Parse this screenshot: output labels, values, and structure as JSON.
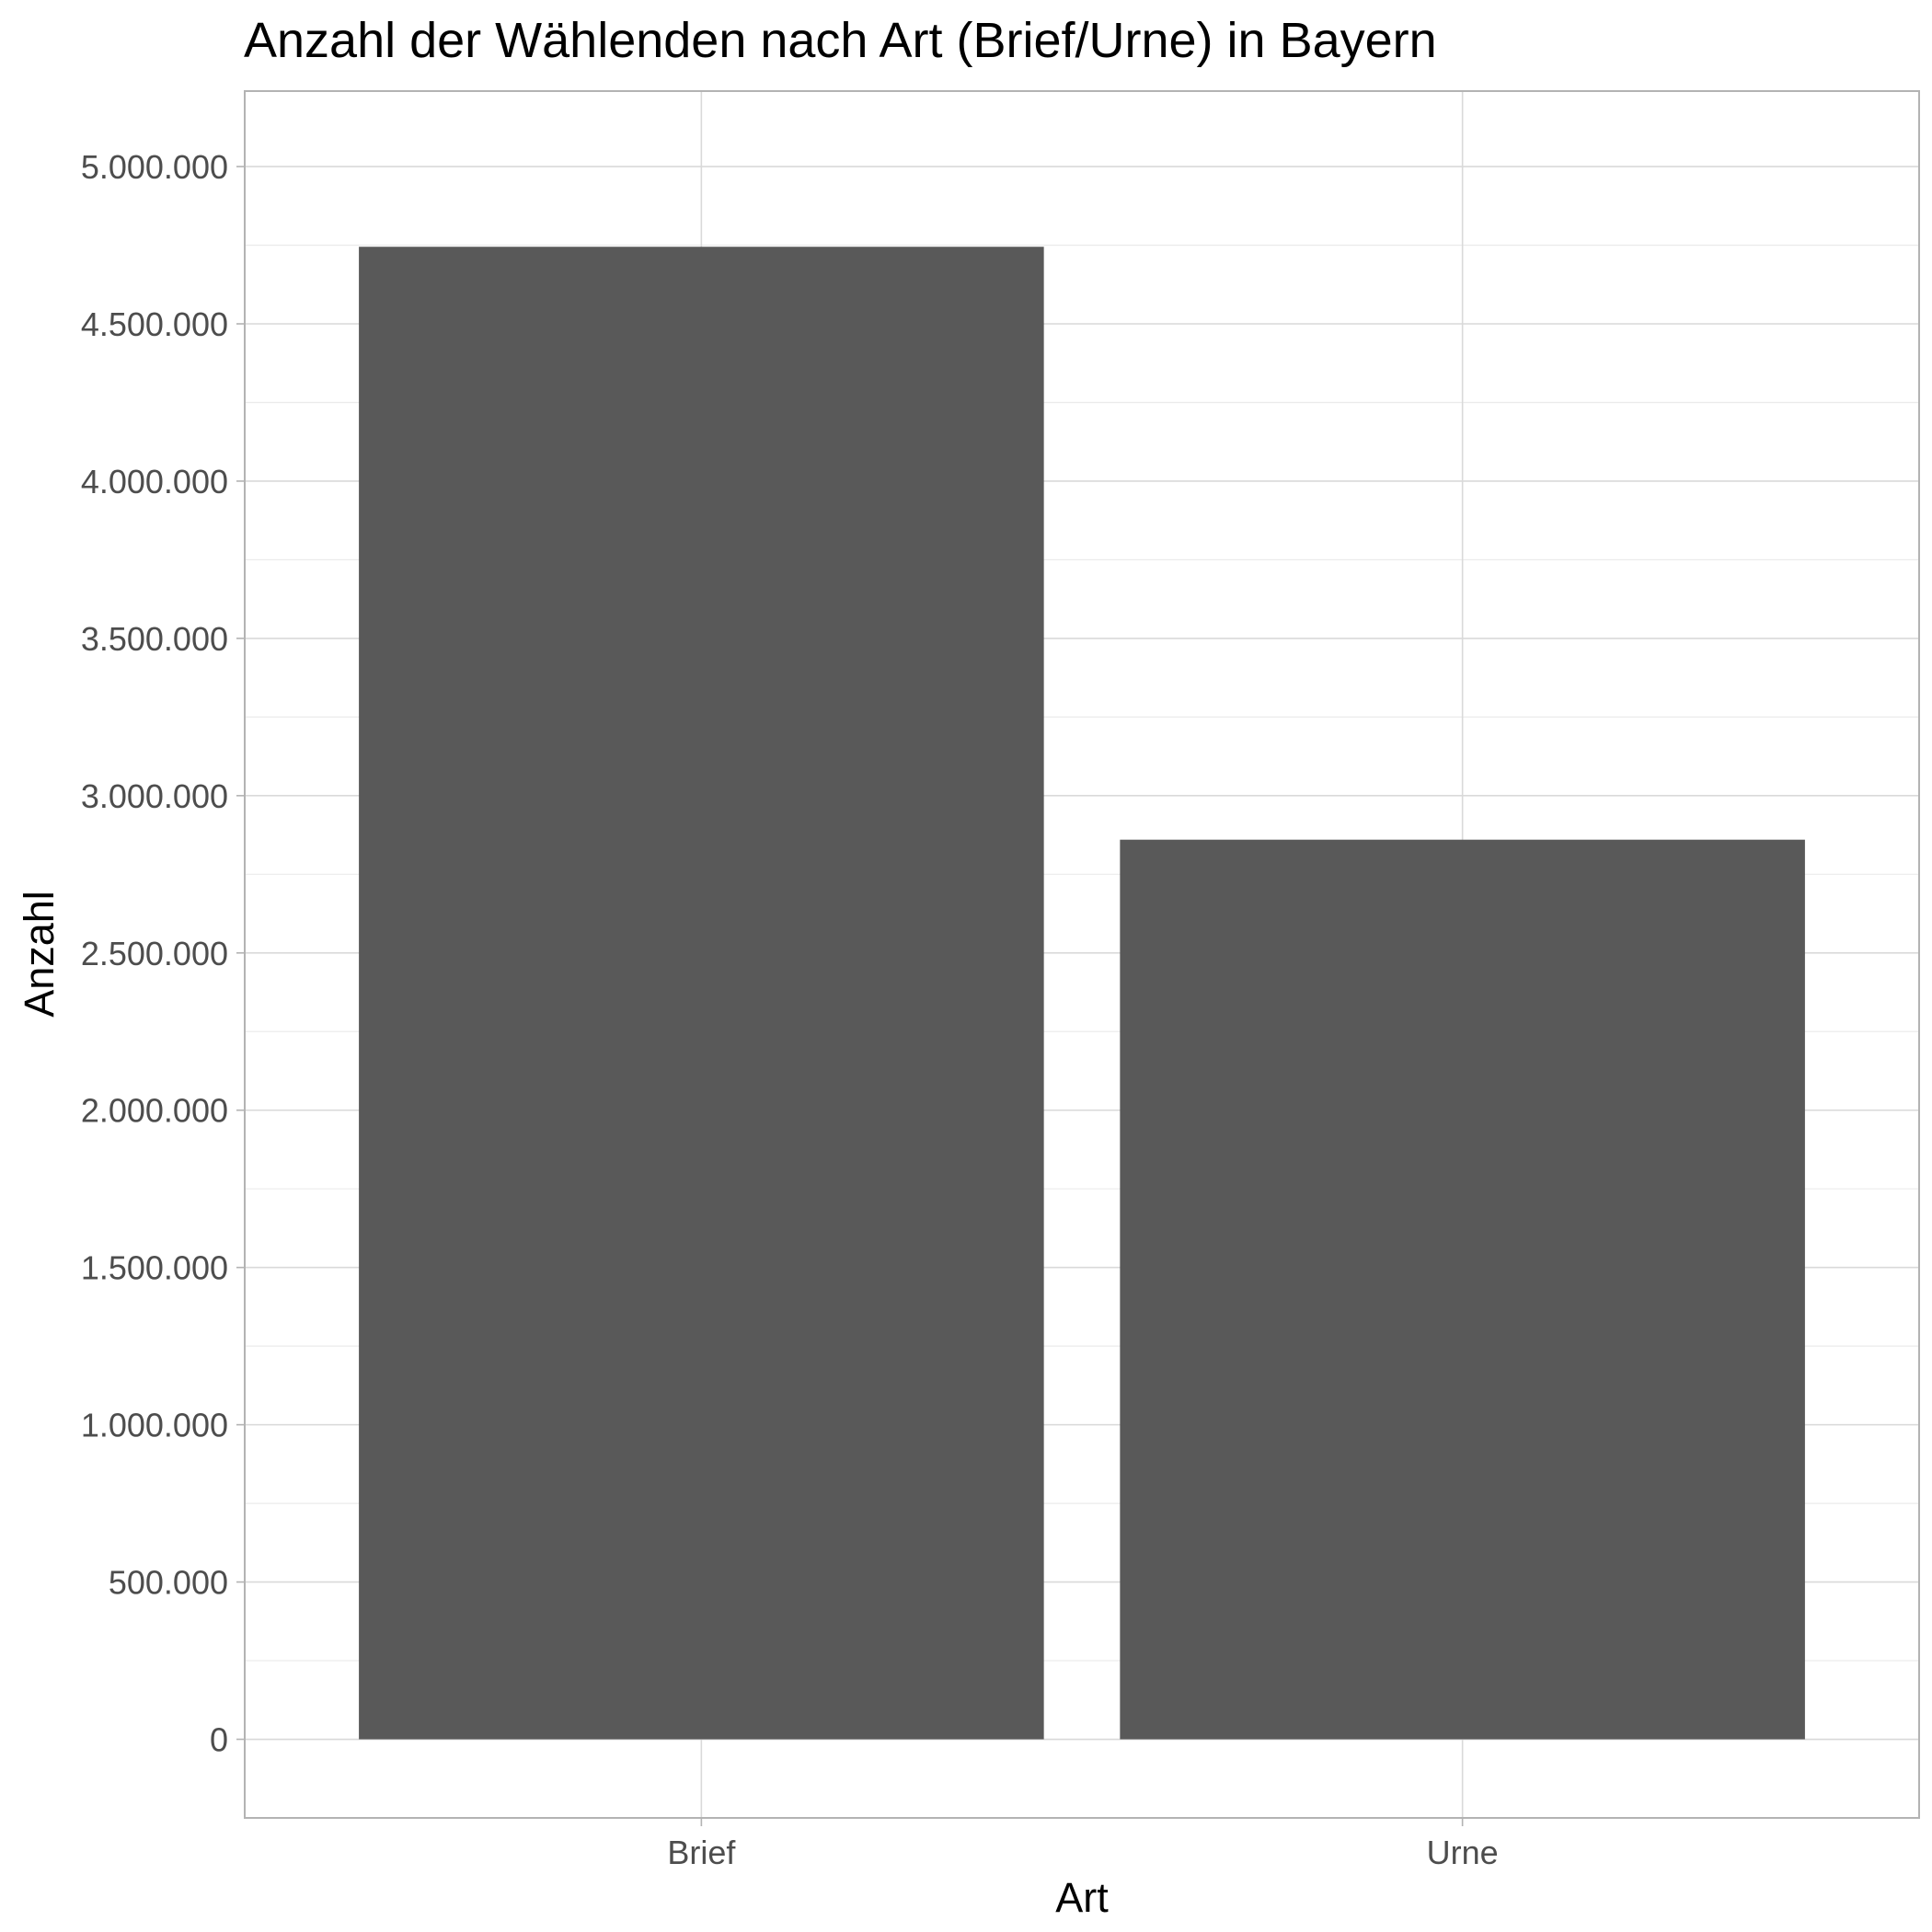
{
  "chart_data": {
    "type": "bar",
    "title": "Anzahl der Wählenden nach Art (Brief/Urne) in Bayern",
    "xlabel": "Art",
    "ylabel": "Anzahl",
    "categories": [
      "Brief",
      "Urne"
    ],
    "values": [
      4745000,
      2860000
    ],
    "ylim": [
      -250000,
      5240000
    ],
    "y_ticks": [
      0,
      500000,
      1000000,
      1500000,
      2000000,
      2500000,
      3000000,
      3500000,
      4000000,
      4500000,
      5000000
    ],
    "y_tick_labels": [
      "0",
      "500.000",
      "1.000.000",
      "1.500.000",
      "2.000.000",
      "2.500.000",
      "3.000.000",
      "3.500.000",
      "4.000.000",
      "4.500.000",
      "5.000.000"
    ],
    "grid": true,
    "legend": "none",
    "bar_color": "#595959"
  }
}
